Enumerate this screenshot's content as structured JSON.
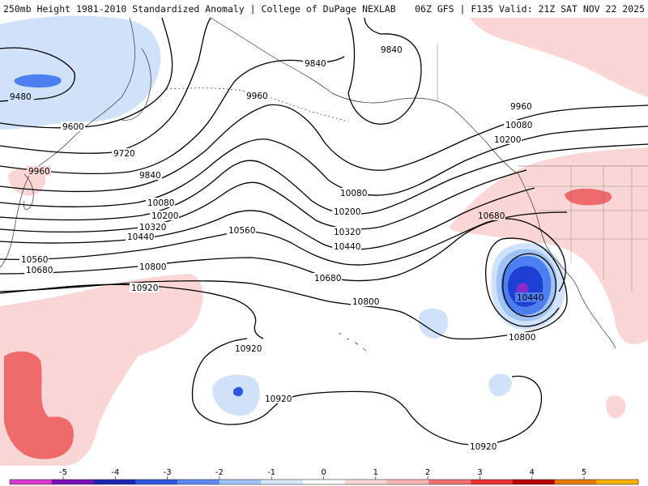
{
  "header": {
    "left_title": "250mb Height 1981-2010 Standardized Anomaly | College of DuPage NEXLAB",
    "right_title": "06Z GFS | F135 Valid: 21Z SAT NOV 22 2025"
  },
  "contour_labels": {
    "l9480": "9480",
    "l9600": "9600",
    "l9720": "9720",
    "l9840_a": "9840",
    "l9840_b": "9840",
    "l9840_c": "9840",
    "l9960_a": "9960",
    "l9960_b": "9960",
    "l9960_c": "9960",
    "l10080_a": "10080",
    "l10080_b": "10080",
    "l10080_c": "10080",
    "l10200_a": "10200",
    "l10200_b": "10200",
    "l10200_c": "10200",
    "l10320_a": "10320",
    "l10320_b": "10320",
    "l10440_a": "10440",
    "l10440_b": "10440",
    "l10440_c": "10440",
    "l10560_a": "10560",
    "l10560_b": "10560",
    "l10680_a": "10680",
    "l10680_b": "10680",
    "l10680_c": "10680",
    "l10800_a": "10800",
    "l10800_b": "10800",
    "l10800_c": "10800",
    "l10920_a": "10920",
    "l10920_b": "10920",
    "l10920_c": "10920",
    "l10920_d": "10920"
  },
  "colorbar": {
    "ticks": [
      "-5",
      "-4",
      "-3",
      "-2",
      "-1",
      "0",
      "1",
      "2",
      "3",
      "4",
      "5"
    ],
    "colors": [
      "#d83ad0",
      "#7a0fb8",
      "#1b24b0",
      "#2d56e0",
      "#5d88f0",
      "#9fc3f5",
      "#d6e8fa",
      "#ffffff",
      "#fbd8d8",
      "#f6b4b4",
      "#f07070",
      "#e83232",
      "#b80000",
      "#e67800",
      "#ffb000"
    ]
  },
  "anomaly_colors": {
    "neg_light": "#cfe2fa",
    "neg_mid": "#9fc3f5",
    "neg_strong": "#4d7ff0",
    "neg_deep": "#1e3fd4",
    "neg_core": "#8a2bc8",
    "pos_light": "#fbd6d6",
    "pos_mid": "#f6a8a8",
    "pos_strong": "#ef6a6a"
  }
}
